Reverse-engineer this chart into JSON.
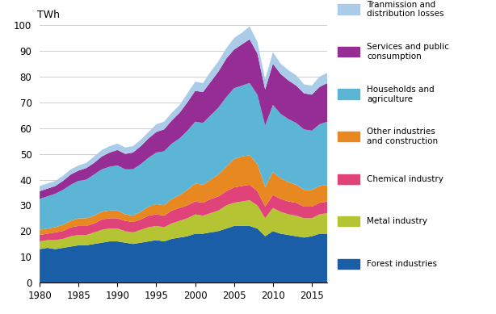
{
  "years": [
    1980,
    1981,
    1982,
    1983,
    1984,
    1985,
    1986,
    1987,
    1988,
    1989,
    1990,
    1991,
    1992,
    1993,
    1994,
    1995,
    1996,
    1997,
    1998,
    1999,
    2000,
    2001,
    2002,
    2003,
    2004,
    2005,
    2006,
    2007,
    2008,
    2009,
    2010,
    2011,
    2012,
    2013,
    2014,
    2015,
    2016,
    2017
  ],
  "forest_industries": [
    13,
    13.5,
    13,
    13.5,
    14,
    14.5,
    14.5,
    15,
    15.5,
    16,
    16,
    15.5,
    15,
    15.5,
    16,
    16.5,
    16,
    17,
    17.5,
    18,
    19,
    19,
    19.5,
    20,
    21,
    22,
    22,
    22,
    21,
    18,
    20,
    19,
    18.5,
    18,
    17.5,
    18,
    19,
    19
  ],
  "metal_industry": [
    3,
    3,
    3.5,
    3.5,
    4,
    4,
    4,
    4.5,
    5,
    5,
    5,
    4.5,
    4.5,
    5,
    5.5,
    5.5,
    5.5,
    6,
    6.5,
    7,
    7.5,
    7,
    7.5,
    8,
    9,
    9,
    9.5,
    10,
    9,
    7,
    9,
    8.5,
    8,
    8,
    7.5,
    7,
    7.5,
    8
  ],
  "chemical_industry": [
    2.5,
    2.5,
    3,
    3,
    3.5,
    3.5,
    3.5,
    3.5,
    4,
    4,
    4,
    4,
    4,
    4,
    4.5,
    4.5,
    4.5,
    5,
    5,
    5,
    5,
    5,
    5.5,
    5.5,
    5.5,
    6,
    6,
    6,
    5.5,
    4.5,
    5,
    5,
    5,
    5,
    4.5,
    4.5,
    4.5,
    4.5
  ],
  "other_industries": [
    2,
    2,
    2,
    2.5,
    2.5,
    3,
    3,
    3,
    3,
    3,
    3,
    2.5,
    2.5,
    3,
    3.5,
    4,
    4,
    4.5,
    5,
    6,
    7,
    7,
    7.5,
    8.5,
    9.5,
    11,
    11.5,
    11.5,
    10.5,
    7.5,
    9,
    8,
    7.5,
    7,
    6.5,
    6.5,
    6.5,
    6.5
  ],
  "households_agriculture": [
    12,
    12.5,
    13,
    13.5,
    14,
    14.5,
    15,
    16,
    16.5,
    17,
    17.5,
    17.5,
    18,
    18.5,
    19,
    20,
    21,
    21.5,
    22,
    23,
    24,
    24,
    25,
    26,
    27,
    27.5,
    27.5,
    28,
    27,
    24,
    26,
    25,
    24.5,
    24,
    23.5,
    23,
    24,
    24.5
  ],
  "services_public": [
    3,
    3,
    3,
    3.5,
    4,
    4,
    4.5,
    4.5,
    5,
    5.5,
    6,
    6,
    6.5,
    7,
    7.5,
    8,
    8.5,
    9,
    10,
    11,
    12,
    12,
    13,
    14,
    15,
    15,
    16,
    17,
    16,
    14,
    16,
    15.5,
    15,
    14.5,
    14,
    14,
    14.5,
    15
  ],
  "transmission_losses": [
    2,
    2,
    2,
    2,
    2,
    2,
    2,
    2.5,
    2.5,
    2.5,
    2.5,
    2.5,
    2.5,
    2.5,
    2.5,
    3,
    3,
    3,
    3,
    3.5,
    3.5,
    3.5,
    4,
    4,
    4,
    4.5,
    4.5,
    5,
    4.5,
    4,
    4.5,
    4,
    4,
    4,
    3.5,
    3.5,
    4,
    4
  ],
  "colors": {
    "forest_industries": "#1a5ea8",
    "metal_industry": "#b5c432",
    "chemical_industry": "#e0427a",
    "other_industries": "#e88820",
    "households_agriculture": "#5db5d5",
    "services_public": "#952d95",
    "transmission_losses": "#aacce8"
  },
  "labels": {
    "forest_industries": "Forest industries",
    "metal_industry": "Metal industry",
    "chemical_industry": "Chemical industry",
    "other_industries": "Other industries\nand construction",
    "households_agriculture": "Households and\nagriculture",
    "services_public": "Services and public\nconsumption",
    "transmission_losses": "Tranmission and\ndistribution losses"
  },
  "twh_label": "TWh",
  "ylim": [
    0,
    100
  ],
  "xlim": [
    1980,
    2017
  ],
  "yticks": [
    0,
    10,
    20,
    30,
    40,
    50,
    60,
    70,
    80,
    90,
    100
  ],
  "xticks": [
    1980,
    1985,
    1990,
    1995,
    2000,
    2005,
    2010,
    2015
  ]
}
